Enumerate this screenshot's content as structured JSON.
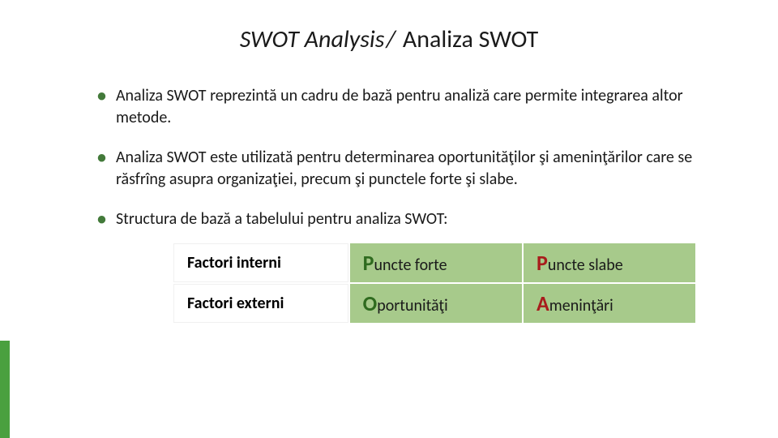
{
  "title": {
    "italic_part": "SWOT Analysis",
    "separator": "/",
    "plain_part": " Analiza SWOT"
  },
  "bullets": [
    "Analiza SWOT reprezintă un cadru de bază pentru analiză care permite integrarea altor metode.",
    "Analiza SWOT este utilizată pentru determinarea oportunităţilor şi ameninţărilor care se răsfrîng asupra organizaţiei, precum şi punctele forte şi slabe.",
    "Structura de bază a tabelului pentru analiza SWOT:"
  ],
  "table": {
    "rows": [
      {
        "label": "Factori interni",
        "c1": {
          "big": "P",
          "color": "grn",
          "rest": "uncte forte"
        },
        "c2": {
          "big": "P",
          "color": "red",
          "rest": "uncte slabe"
        }
      },
      {
        "label": "Factori externi",
        "c1": {
          "big": "O",
          "color": "grn",
          "rest": "portunităţi"
        },
        "c2": {
          "big": "A",
          "color": "red",
          "rest": "meninţări"
        }
      }
    ],
    "cell_bg": "#a7ca8b",
    "accent_green": "#2f6b1f",
    "accent_red": "#a81c1c"
  },
  "accent_bar_color": "#4aa03f"
}
